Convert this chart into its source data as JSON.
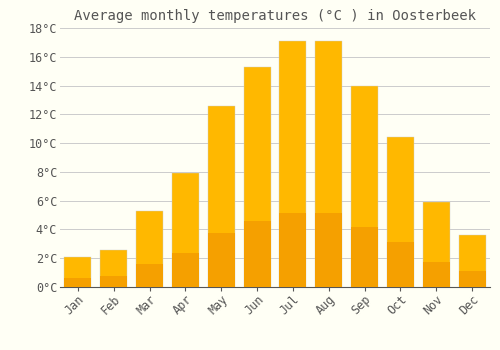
{
  "title": "Average monthly temperatures (°C ) in Oosterbeek",
  "months": [
    "Jan",
    "Feb",
    "Mar",
    "Apr",
    "May",
    "Jun",
    "Jul",
    "Aug",
    "Sep",
    "Oct",
    "Nov",
    "Dec"
  ],
  "values": [
    2.1,
    2.6,
    5.3,
    7.9,
    12.6,
    15.3,
    17.1,
    17.1,
    14.0,
    10.4,
    5.9,
    3.6
  ],
  "bar_color_top": "#FFB800",
  "bar_color_bottom": "#F5A000",
  "bar_edge_color": "#CCCCCC",
  "background_color": "#FFFFF5",
  "plot_bg_color": "#FFFFF5",
  "grid_color": "#CCCCCC",
  "text_color": "#555555",
  "ylim": [
    0,
    18
  ],
  "yticks": [
    0,
    2,
    4,
    6,
    8,
    10,
    12,
    14,
    16,
    18
  ],
  "title_fontsize": 10,
  "tick_fontsize": 8.5,
  "font_family": "monospace",
  "bar_width": 0.75
}
